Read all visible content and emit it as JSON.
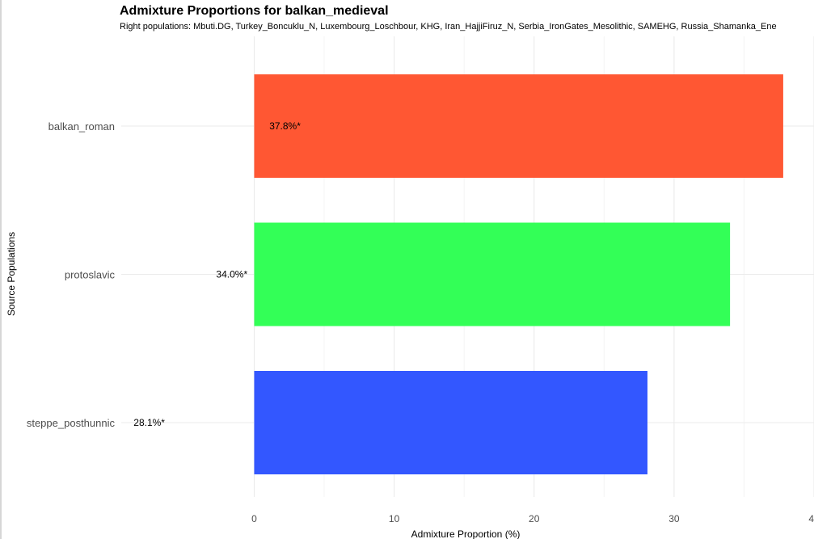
{
  "chart_data": {
    "type": "bar",
    "orientation": "horizontal",
    "title": "Admixture Proportions for balkan_medieval",
    "subtitle": "Right populations: Mbuti.DG, Turkey_Boncuklu_N, Luxembourg_Loschbour, KHG, Iran_HajjiFiruz_N, Serbia_IronGates_Mesolithic, SAMEHG, Russia_Shamanka_Ene",
    "xlabel": "Admixture Proportion (%)",
    "ylabel": "Source Populations",
    "categories": [
      "balkan_roman",
      "protoslavic",
      "steppe_posthunnic"
    ],
    "values": [
      37.8,
      34.0,
      28.1
    ],
    "data_labels": [
      "37.8%*",
      "34.0%*",
      "28.1%*"
    ],
    "colors": [
      "#FF5733",
      "#33FF57",
      "#3357FF"
    ],
    "xticks": [
      "0",
      "10",
      "20",
      "30",
      "40"
    ],
    "xlim": [
      -9.5,
      40
    ],
    "grid": true,
    "legend": "none"
  }
}
